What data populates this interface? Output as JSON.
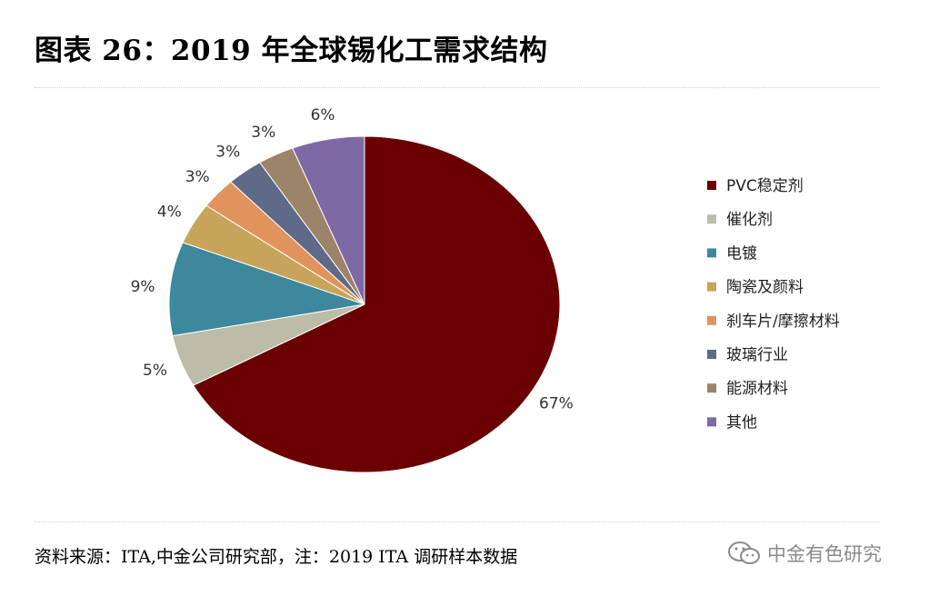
{
  "title": "图表 26：2019 年全球锡化工需求结构",
  "source": "资料来源：ITA,中金公司研究部，注：2019 ITA 调研样本数据",
  "watermark": "中金有色研究",
  "chart_data": {
    "type": "pie",
    "title": "",
    "slices": [
      {
        "label": "PVC稳定剂",
        "value": 67,
        "display": "67%",
        "color": "#6b0000"
      },
      {
        "label": "催化剂",
        "value": 5,
        "display": "5%",
        "color": "#bdbca8"
      },
      {
        "label": "电镀",
        "value": 9,
        "display": "9%",
        "color": "#3d889d"
      },
      {
        "label": "陶瓷及颜料",
        "value": 4,
        "display": "4%",
        "color": "#c8a45a"
      },
      {
        "label": "刹车片/摩擦材料",
        "value": 3,
        "display": "3%",
        "color": "#e0935c"
      },
      {
        "label": "玻璃行业",
        "value": 3,
        "display": "3%",
        "color": "#5f6a88"
      },
      {
        "label": "能源材料",
        "value": 3,
        "display": "3%",
        "color": "#9b8468"
      },
      {
        "label": "其他",
        "value": 6,
        "display": "6%",
        "color": "#7f69a4"
      }
    ],
    "legend_position": "right"
  }
}
